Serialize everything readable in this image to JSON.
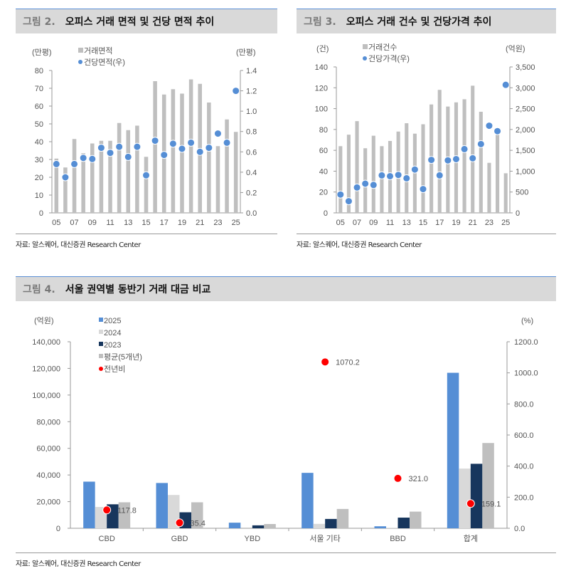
{
  "chart_data": [
    {
      "type": "bar+scatter",
      "id": "fig2",
      "fig_no": "그림 2.",
      "title": "오피스 거래 면적 및 건당 면적 추이",
      "left_unit": "(만평)",
      "right_unit": "(만평)",
      "legend": [
        "거래면적",
        "건당면적(우)"
      ],
      "x": [
        "05",
        "06",
        "07",
        "08",
        "09",
        "10",
        "11",
        "12",
        "13",
        "14",
        "15",
        "16",
        "17",
        "18",
        "19",
        "20",
        "21",
        "22",
        "23",
        "24",
        "25"
      ],
      "x_tick_labels": [
        "05",
        "07",
        "09",
        "11",
        "13",
        "15",
        "17",
        "19",
        "21",
        "23",
        "25"
      ],
      "bar_values": [
        30.5,
        25.5,
        41.5,
        33.5,
        39,
        40.5,
        40.5,
        50.5,
        46.5,
        49,
        31.5,
        74,
        66.5,
        69.5,
        67,
        75,
        72.5,
        62,
        37.5,
        52.5,
        45.5
      ],
      "dot_values": [
        0.48,
        0.35,
        0.48,
        0.54,
        0.53,
        0.64,
        0.59,
        0.65,
        0.55,
        0.65,
        0.37,
        0.71,
        0.57,
        0.68,
        0.63,
        0.69,
        0.6,
        0.64,
        0.78,
        0.69,
        1.2
      ],
      "ylim": [
        0,
        80
      ],
      "yticks": [
        "0",
        "10",
        "20",
        "30",
        "40",
        "50",
        "60",
        "70",
        "80"
      ],
      "y2lim": [
        0,
        1.4
      ],
      "y2ticks": [
        "0.0",
        "0.2",
        "0.4",
        "0.6",
        "0.8",
        "1.0",
        "1.2",
        "1.4"
      ],
      "source": "자료: 알스퀘어, 대신증권 Research Center"
    },
    {
      "type": "bar+scatter",
      "id": "fig3",
      "fig_no": "그림 3.",
      "title": "오피스 거래 건수 및 건당가격 추이",
      "left_unit": "(건)",
      "right_unit": "(억원)",
      "legend": [
        "거래건수",
        "건당가격(우)"
      ],
      "x": [
        "05",
        "06",
        "07",
        "08",
        "09",
        "10",
        "11",
        "12",
        "13",
        "14",
        "15",
        "16",
        "17",
        "18",
        "19",
        "20",
        "21",
        "22",
        "23",
        "24",
        "25"
      ],
      "x_tick_labels": [
        "05",
        "07",
        "09",
        "11",
        "13",
        "15",
        "17",
        "19",
        "21",
        "23",
        "25"
      ],
      "bar_values": [
        64,
        75,
        88,
        62,
        74,
        64,
        69,
        78,
        86,
        76,
        85,
        104,
        118,
        102,
        106,
        109,
        122,
        97,
        48,
        76,
        38
      ],
      "dot_values": [
        440,
        280,
        610,
        700,
        670,
        900,
        880,
        910,
        830,
        1040,
        570,
        1270,
        900,
        1260,
        1290,
        1530,
        1310,
        1650,
        2090,
        1960,
        3070
      ],
      "ylim": [
        0,
        140
      ],
      "yticks": [
        "0",
        "20",
        "40",
        "60",
        "80",
        "100",
        "120",
        "140"
      ],
      "y2lim": [
        0,
        3500
      ],
      "y2ticks": [
        "0",
        "500",
        "1,000",
        "1,500",
        "2,000",
        "2,500",
        "3,000",
        "3,500"
      ],
      "source": "자료: 알스퀘어, 대신증권 Research Center"
    },
    {
      "type": "grouped-bar+scatter",
      "id": "fig4",
      "fig_no": "그림 4.",
      "title": "서울 권역별 동반기 거래 대금 비교",
      "left_unit": "(억원)",
      "right_unit": "(%)",
      "categories": [
        "CBD",
        "GBD",
        "YBD",
        "서울 기타",
        "BBD",
        "합계"
      ],
      "series": [
        {
          "name": "2025",
          "color": "#558ed5",
          "values": [
            35000,
            34000,
            4200,
            41600,
            1500,
            116700
          ]
        },
        {
          "name": "2024",
          "color": "#d9d9d9",
          "values": [
            16000,
            25000,
            0,
            3300,
            200,
            44800
          ]
        },
        {
          "name": "2023",
          "color": "#17365d",
          "values": [
            18000,
            12000,
            2200,
            7000,
            8000,
            48400
          ]
        },
        {
          "name": "평균(5개년)",
          "color": "#bfbfbf",
          "values": [
            19500,
            19500,
            3200,
            14500,
            12500,
            64000
          ]
        }
      ],
      "yoy": {
        "name": "전년비",
        "values": [
          117.8,
          35.4,
          null,
          1070.2,
          321.0,
          159.1
        ],
        "labels": [
          "117.8",
          "35.4",
          "",
          "1070.2",
          "321.0",
          "159.1"
        ]
      },
      "ylim": [
        0,
        140000
      ],
      "yticks": [
        "0",
        "20,000",
        "40,000",
        "60,000",
        "80,000",
        "100,000",
        "120,000",
        "140,000"
      ],
      "y2lim": [
        0,
        1200
      ],
      "y2ticks": [
        "0.0",
        "200.0",
        "400.0",
        "600.0",
        "800.0",
        "1000.0",
        "1200.0"
      ],
      "source": "자료: 알스퀘어, 대신증권 Research Center"
    }
  ]
}
